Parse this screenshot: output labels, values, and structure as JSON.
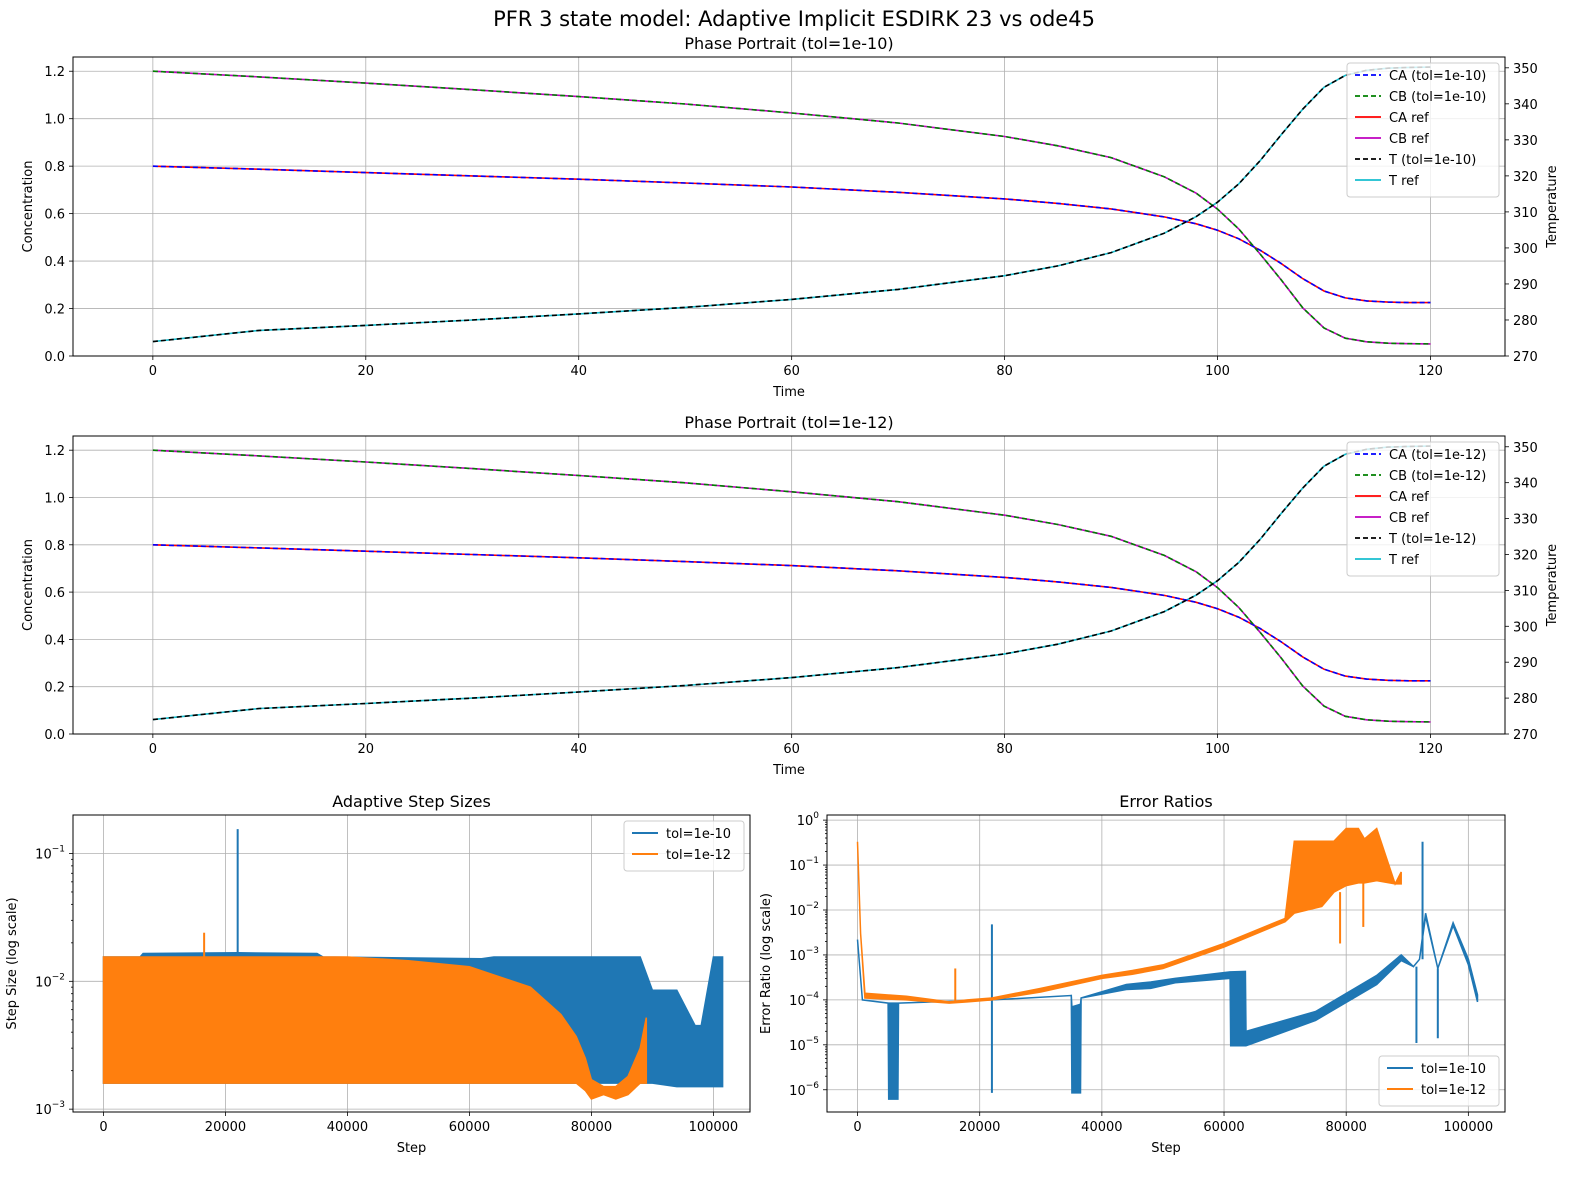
{
  "suptitle": "PFR 3 state model: Adaptive Implicit ESDIRK 23 vs ode45",
  "colors": {
    "CA_est": "#0000ff",
    "CB_est": "#008000",
    "CA_ref": "#ff0000",
    "CB_ref": "#bf00bf",
    "T_est": "#000000",
    "T_ref": "#17becf",
    "tol10": "#1f77b4",
    "tol12": "#ff7f0e"
  },
  "chart_data": [
    {
      "type": "line",
      "title": "Phase Portrait (tol=1e-10)",
      "xlabel": "Time",
      "ylabel": "Concentration",
      "y2label": "Temperature",
      "xlim": [
        -7.5,
        127
      ],
      "ylim": [
        0,
        1.26
      ],
      "y2lim": [
        270,
        353
      ],
      "xticks": [
        "0",
        "20",
        "40",
        "60",
        "80",
        "100",
        "120"
      ],
      "yticks": [
        "0.0",
        "0.2",
        "0.4",
        "0.6",
        "0.8",
        "1.0",
        "1.2"
      ],
      "y2ticks": [
        "270",
        "280",
        "290",
        "300",
        "310",
        "320",
        "330",
        "340",
        "350"
      ],
      "grid": true,
      "legend_position": "upper right",
      "x": [
        0,
        10,
        20,
        30,
        40,
        50,
        60,
        70,
        80,
        85,
        90,
        95,
        98,
        100,
        102,
        104,
        106,
        108,
        110,
        112,
        114,
        116,
        118,
        120
      ],
      "series": [
        {
          "name": "CA (tol=1e-10)",
          "axis": "left",
          "style": "dashed",
          "color_key": "CA_est",
          "values": [
            0.8,
            0.787,
            0.773,
            0.759,
            0.745,
            0.729,
            0.712,
            0.69,
            0.662,
            0.643,
            0.62,
            0.586,
            0.557,
            0.53,
            0.494,
            0.446,
            0.389,
            0.326,
            0.274,
            0.245,
            0.232,
            0.227,
            0.225,
            0.225
          ]
        },
        {
          "name": "CB (tol=1e-10)",
          "axis": "left",
          "style": "dashed",
          "color_key": "CB_est",
          "values": [
            1.2,
            1.176,
            1.15,
            1.122,
            1.093,
            1.062,
            1.024,
            0.982,
            0.925,
            0.886,
            0.836,
            0.755,
            0.686,
            0.619,
            0.535,
            0.43,
            0.32,
            0.203,
            0.118,
            0.075,
            0.06,
            0.054,
            0.052,
            0.051
          ]
        },
        {
          "name": "CA ref",
          "axis": "left",
          "style": "solid",
          "color_key": "CA_ref",
          "values": [
            0.8,
            0.787,
            0.773,
            0.759,
            0.745,
            0.729,
            0.712,
            0.69,
            0.662,
            0.643,
            0.62,
            0.586,
            0.557,
            0.53,
            0.494,
            0.446,
            0.389,
            0.326,
            0.274,
            0.245,
            0.232,
            0.227,
            0.225,
            0.225
          ]
        },
        {
          "name": "CB ref",
          "axis": "left",
          "style": "solid",
          "color_key": "CB_ref",
          "values": [
            1.2,
            1.176,
            1.15,
            1.122,
            1.093,
            1.062,
            1.024,
            0.982,
            0.925,
            0.886,
            0.836,
            0.755,
            0.686,
            0.619,
            0.535,
            0.43,
            0.32,
            0.203,
            0.118,
            0.075,
            0.06,
            0.054,
            0.052,
            0.051
          ]
        },
        {
          "name": "T (tol=1e-10)",
          "axis": "right",
          "style": "dashed",
          "color_key": "T_est",
          "values": [
            274,
            277.1,
            278.5,
            280,
            281.7,
            283.5,
            285.7,
            288.5,
            292.3,
            295,
            298.7,
            304.1,
            308.7,
            312.7,
            317.8,
            324.2,
            331.5,
            338.5,
            344.6,
            347.9,
            349.3,
            349.9,
            350.1,
            350.2
          ]
        },
        {
          "name": "T ref",
          "axis": "right",
          "style": "solid",
          "color_key": "T_ref",
          "values": [
            274,
            277.1,
            278.5,
            280,
            281.7,
            283.5,
            285.7,
            288.5,
            292.3,
            295,
            298.7,
            304.1,
            308.7,
            312.7,
            317.8,
            324.2,
            331.5,
            338.5,
            344.6,
            347.9,
            349.3,
            349.9,
            350.1,
            350.2
          ]
        }
      ]
    },
    {
      "type": "line",
      "title": "Phase Portrait (tol=1e-12)",
      "xlabel": "Time",
      "ylabel": "Concentration",
      "y2label": "Temperature",
      "xlim": [
        -7.5,
        127
      ],
      "ylim": [
        0,
        1.26
      ],
      "y2lim": [
        270,
        353
      ],
      "xticks": [
        "0",
        "20",
        "40",
        "60",
        "80",
        "100",
        "120"
      ],
      "yticks": [
        "0.0",
        "0.2",
        "0.4",
        "0.6",
        "0.8",
        "1.0",
        "1.2"
      ],
      "y2ticks": [
        "270",
        "280",
        "290",
        "300",
        "310",
        "320",
        "330",
        "340",
        "350"
      ],
      "grid": true,
      "legend_position": "upper right",
      "x": [
        0,
        10,
        20,
        30,
        40,
        50,
        60,
        70,
        80,
        85,
        90,
        95,
        98,
        100,
        102,
        104,
        106,
        108,
        110,
        112,
        114,
        116,
        118,
        120
      ],
      "series": [
        {
          "name": "CA (tol=1e-12)",
          "axis": "left",
          "style": "dashed",
          "color_key": "CA_est",
          "values": [
            0.8,
            0.787,
            0.773,
            0.759,
            0.745,
            0.729,
            0.712,
            0.69,
            0.662,
            0.643,
            0.62,
            0.586,
            0.557,
            0.53,
            0.494,
            0.446,
            0.389,
            0.326,
            0.274,
            0.245,
            0.232,
            0.227,
            0.225,
            0.225
          ]
        },
        {
          "name": "CB (tol=1e-12)",
          "axis": "left",
          "style": "dashed",
          "color_key": "CB_est",
          "values": [
            1.2,
            1.176,
            1.15,
            1.122,
            1.093,
            1.062,
            1.024,
            0.982,
            0.925,
            0.886,
            0.836,
            0.755,
            0.686,
            0.619,
            0.535,
            0.43,
            0.32,
            0.203,
            0.118,
            0.075,
            0.06,
            0.054,
            0.052,
            0.051
          ]
        },
        {
          "name": "CA ref",
          "axis": "left",
          "style": "solid",
          "color_key": "CA_ref",
          "values": [
            0.8,
            0.787,
            0.773,
            0.759,
            0.745,
            0.729,
            0.712,
            0.69,
            0.662,
            0.643,
            0.62,
            0.586,
            0.557,
            0.53,
            0.494,
            0.446,
            0.389,
            0.326,
            0.274,
            0.245,
            0.232,
            0.227,
            0.225,
            0.225
          ]
        },
        {
          "name": "CB ref",
          "axis": "left",
          "style": "solid",
          "color_key": "CB_ref",
          "values": [
            1.2,
            1.176,
            1.15,
            1.122,
            1.093,
            1.062,
            1.024,
            0.982,
            0.925,
            0.886,
            0.836,
            0.755,
            0.686,
            0.619,
            0.535,
            0.43,
            0.32,
            0.203,
            0.118,
            0.075,
            0.06,
            0.054,
            0.052,
            0.051
          ]
        },
        {
          "name": "T (tol=1e-12)",
          "axis": "right",
          "style": "dashed",
          "color_key": "T_est",
          "values": [
            274,
            277.1,
            278.5,
            280,
            281.7,
            283.5,
            285.7,
            288.5,
            292.3,
            295,
            298.7,
            304.1,
            308.7,
            312.7,
            317.8,
            324.2,
            331.5,
            338.5,
            344.6,
            347.9,
            349.3,
            349.9,
            350.1,
            350.2
          ]
        },
        {
          "name": "T ref",
          "axis": "right",
          "style": "solid",
          "color_key": "T_ref",
          "values": [
            274,
            277.1,
            278.5,
            280,
            281.7,
            283.5,
            285.7,
            288.5,
            292.3,
            295,
            298.7,
            304.1,
            308.7,
            312.7,
            317.8,
            324.2,
            331.5,
            338.5,
            344.6,
            347.9,
            349.3,
            349.9,
            350.1,
            350.2
          ]
        }
      ]
    },
    {
      "type": "area",
      "title": "Adaptive Step Sizes",
      "xlabel": "Step",
      "ylabel": "Step Size (log scale)",
      "yscale": "log",
      "xlim": [
        -5000,
        106000
      ],
      "ylim": [
        0.00095,
        0.2
      ],
      "xticks": [
        "0",
        "20000",
        "40000",
        "60000",
        "80000",
        "100000"
      ],
      "grid": true,
      "legend_position": "upper right",
      "note_band": "lines oscillate rapidly between lower and upper bounds (filled band)",
      "series": [
        {
          "name": "tol=1e-10",
          "color_key": "tol10",
          "x": [
            0,
            6000,
            6500,
            22000,
            35000,
            36000,
            62000,
            64000,
            88000,
            90000,
            94000,
            97000,
            98000,
            100000,
            101500
          ],
          "upper": [
            0.0155,
            0.0155,
            0.0165,
            0.0167,
            0.0165,
            0.0155,
            0.015,
            0.0155,
            0.0155,
            0.0085,
            0.0085,
            0.0045,
            0.0045,
            0.0155,
            0.0155
          ],
          "lower": [
            0.0016,
            0.0016,
            0.0016,
            0.0016,
            0.0016,
            0.0016,
            0.0016,
            0.0016,
            0.0016,
            0.0016,
            0.0015,
            0.0015,
            0.0015,
            0.0015,
            0.0015
          ],
          "spikes": [
            {
              "x": 22000,
              "value": 0.155
            }
          ]
        },
        {
          "name": "tol=1e-12",
          "color_key": "tol12",
          "x": [
            0,
            20000,
            40000,
            50000,
            60000,
            70000,
            75000,
            77500,
            79000,
            80000,
            82000,
            84000,
            86000,
            88000,
            89000
          ],
          "upper": [
            0.0155,
            0.0155,
            0.0155,
            0.0145,
            0.013,
            0.009,
            0.0055,
            0.0037,
            0.0025,
            0.0017,
            0.0015,
            0.0015,
            0.0018,
            0.003,
            0.0052
          ],
          "lower": [
            0.0016,
            0.0016,
            0.0016,
            0.0016,
            0.0016,
            0.0016,
            0.0016,
            0.0016,
            0.0014,
            0.0012,
            0.0013,
            0.0012,
            0.0013,
            0.0016,
            0.0016
          ],
          "spikes": [
            {
              "x": 16500,
              "value": 0.024
            }
          ]
        }
      ]
    },
    {
      "type": "area",
      "title": "Error Ratios",
      "xlabel": "Step",
      "ylabel": "Error Ratio (log scale)",
      "yscale": "log",
      "xlim": [
        -5000,
        106000
      ],
      "ylim": [
        3.2e-07,
        1.3
      ],
      "xticks": [
        "0",
        "20000",
        "40000",
        "60000",
        "80000",
        "100000"
      ],
      "grid": true,
      "legend_position": "lower right",
      "series": [
        {
          "name": "tol=1e-10",
          "color_key": "tol10",
          "x": [
            0,
            800,
            5000,
            5100,
            6600,
            6700,
            22000,
            35000,
            35100,
            36500,
            36600,
            44000,
            48000,
            52000,
            61000,
            61100,
            63500,
            63600,
            75000,
            85000,
            89000,
            91000,
            92000,
            93000,
            95000,
            97500,
            100000,
            101500
          ],
          "upper": [
            0.0022,
            0.0001,
            8.5e-05,
            8.5e-05,
            8.5e-05,
            8.5e-05,
            0.0001,
            0.000125,
            7e-05,
            8e-05,
            0.00011,
            0.00022,
            0.00025,
            0.0003,
            0.00042,
            0.00042,
            0.00043,
            2e-05,
            5.5e-05,
            0.00035,
            0.001,
            0.00055,
            0.0008,
            0.0085,
            0.0005,
            0.0052,
            0.0008,
            0.00013
          ],
          "lower": [
            0.0022,
            0.0001,
            8.5e-05,
            6.2e-07,
            6.2e-07,
            8.5e-05,
            0.0001,
            0.000125,
            8.5e-07,
            8.5e-07,
            0.00011,
            0.00017,
            0.00018,
            0.00024,
            0.0003,
            9.5e-06,
            9.5e-06,
            9.5e-06,
            3.5e-05,
            0.00022,
            0.00075,
            0.00055,
            0.0008,
            0.0072,
            0.0005,
            0.0045,
            0.0006,
            9e-05
          ],
          "spikes": [
            {
              "x": 0,
              "value": 0.0022
            },
            {
              "x": 22000,
              "value": 0.0048
            },
            {
              "x": 22000,
              "value": 8.5e-07
            },
            {
              "x": 92500,
              "value": 0.33
            },
            {
              "x": 91500,
              "value": 1.1e-05
            },
            {
              "x": 95000,
              "value": 1.4e-05
            }
          ]
        },
        {
          "name": "tol=1e-12",
          "color_key": "tol12",
          "x": [
            0,
            500,
            1200,
            8000,
            15000,
            18000,
            22000,
            30000,
            40000,
            45000,
            50000,
            60000,
            70000,
            71500,
            76000,
            78000,
            80000,
            82000,
            83000,
            85000,
            88000,
            89000
          ],
          "upper": [
            0.33,
            0.003,
            0.00014,
            0.00012,
            9e-05,
            0.0001,
            0.00011,
            0.00018,
            0.00035,
            0.00045,
            0.0006,
            0.0018,
            0.0065,
            0.34,
            0.34,
            0.34,
            0.65,
            0.65,
            0.38,
            0.65,
            0.038,
            0.07
          ],
          "lower": [
            0.33,
            0.003,
            0.00011,
            0.0001,
            8.5e-05,
            9e-05,
            0.0001,
            0.00015,
            0.0003,
            0.00037,
            0.0005,
            0.0015,
            0.0055,
            0.0085,
            0.012,
            0.025,
            0.035,
            0.04,
            0.04,
            0.045,
            0.038,
            0.038
          ],
          "spikes": [
            {
              "x": 16000,
              "value": 0.0005
            },
            {
              "x": 79000,
              "value": 0.0018
            },
            {
              "x": 82800,
              "value": 0.0042
            }
          ]
        }
      ]
    }
  ]
}
